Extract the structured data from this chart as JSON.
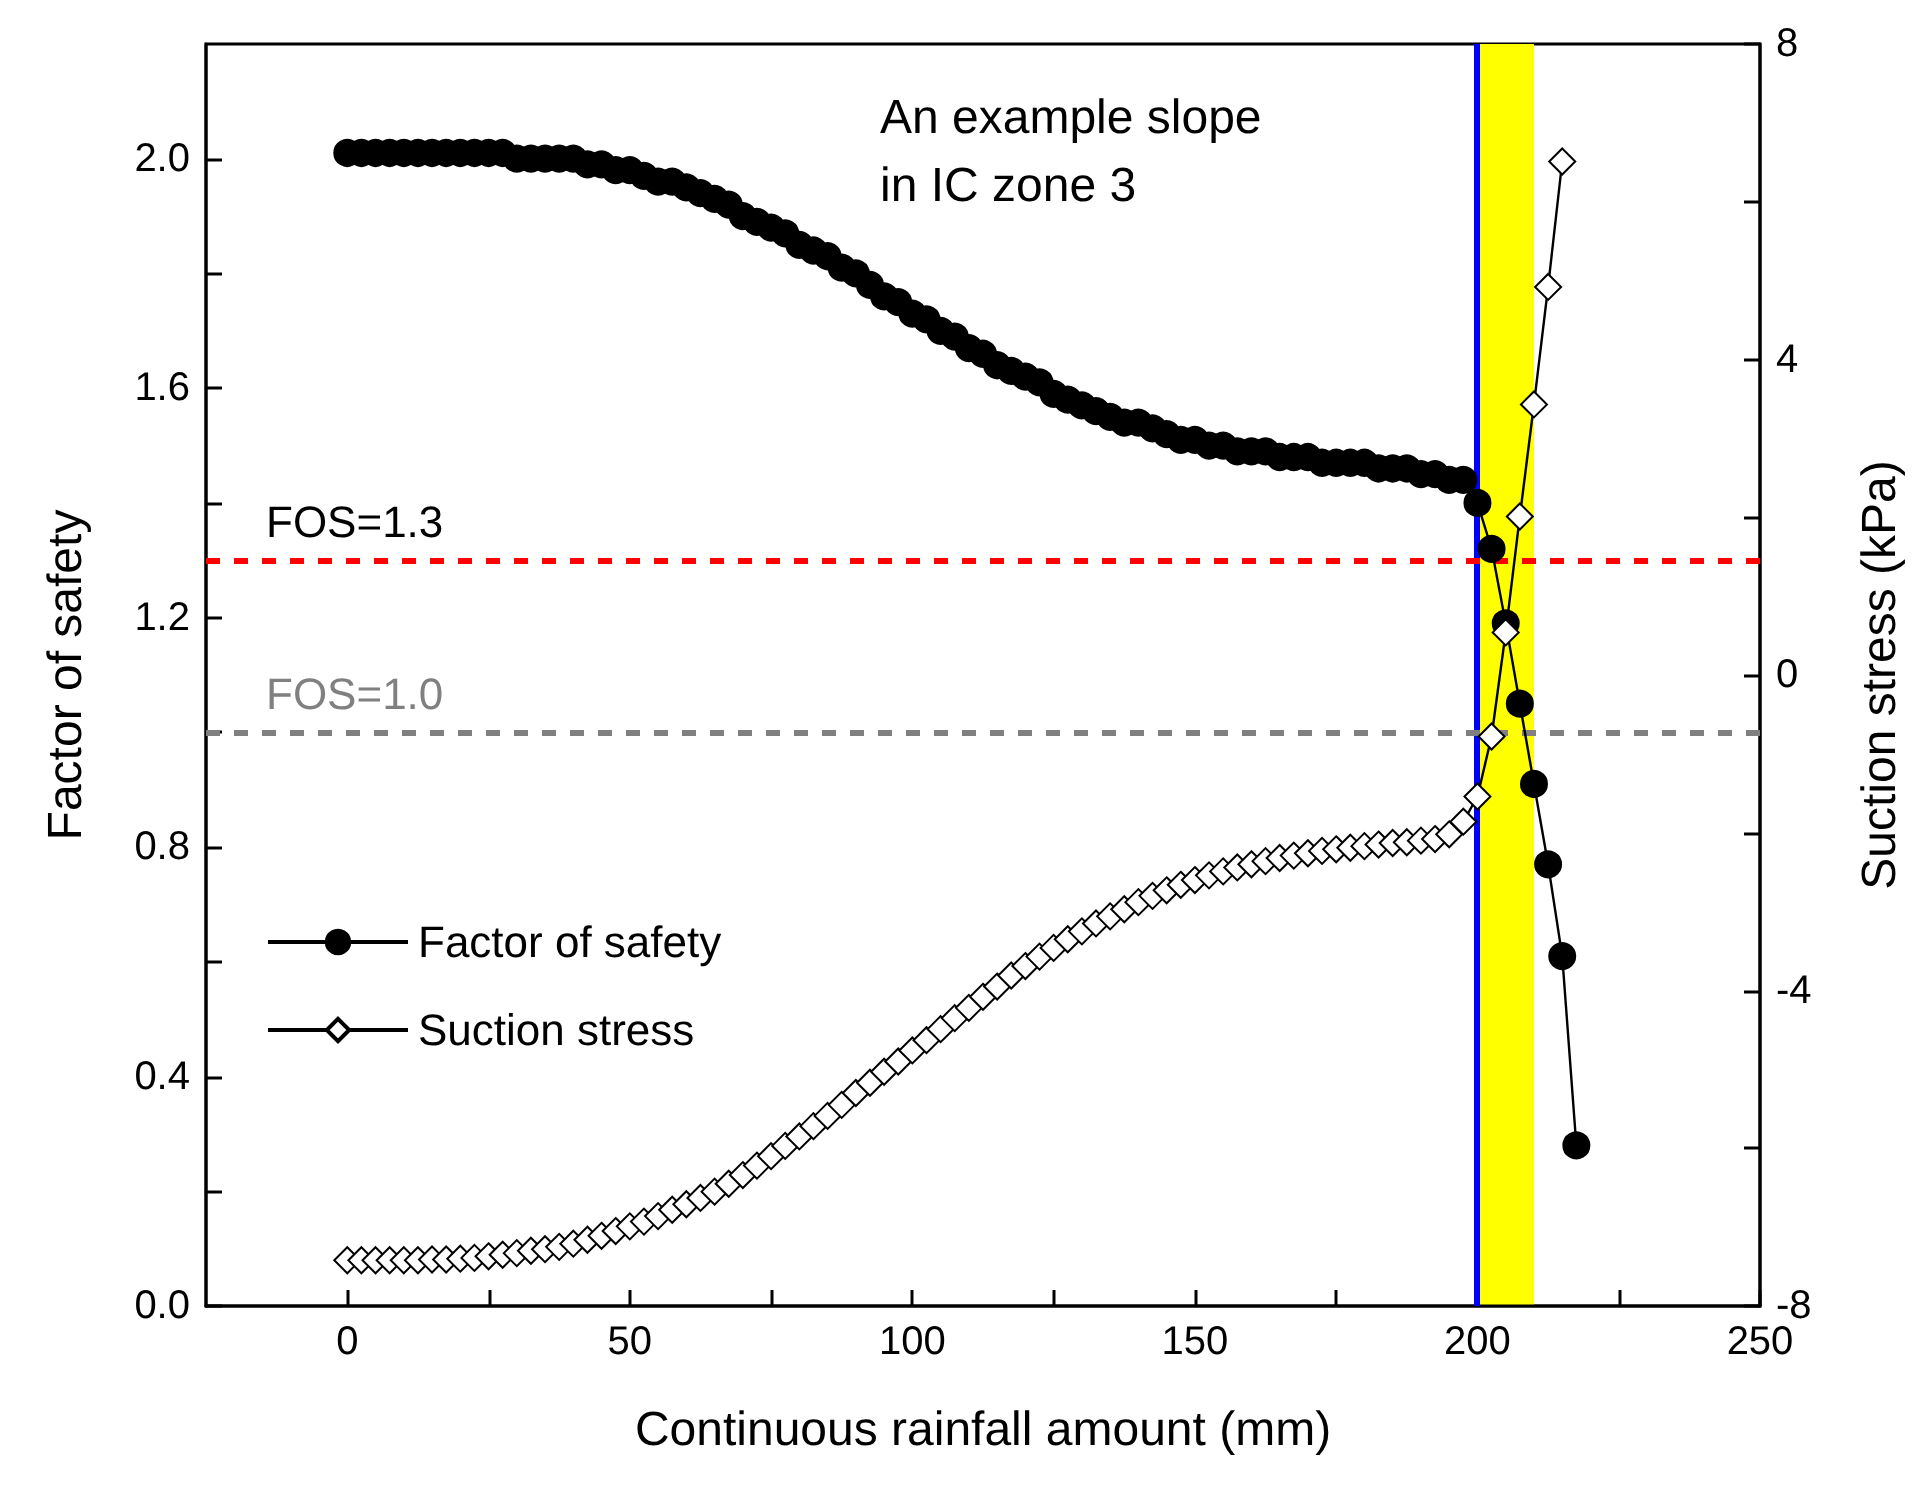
{
  "chart_data": {
    "type": "line",
    "xlabel": "Continuous rainfall amount (mm)",
    "ylabel": "Factor of safety",
    "y2label": "Suction stress (kPa)",
    "annotations": [
      "An example slope\nin IC zone 3"
    ],
    "x": [
      0,
      2.5,
      5,
      7.5,
      10,
      12.5,
      15,
      17.5,
      20,
      22.5,
      25,
      27.5,
      30,
      32.5,
      35,
      37.5,
      40,
      42.5,
      45,
      47.5,
      50,
      52.5,
      55,
      57.5,
      60,
      62.5,
      65,
      67.5,
      70,
      72.5,
      75,
      77.5,
      80,
      82.5,
      85,
      87.5,
      90,
      92.5,
      95,
      97.5,
      100,
      102.5,
      105,
      107.5,
      110,
      112.5,
      115,
      117.5,
      120,
      122.5,
      125,
      127.5,
      130,
      132.5,
      135,
      137.5,
      140,
      142.5,
      145,
      147.5,
      150,
      152.5,
      155,
      157.5,
      160,
      162.5,
      165,
      167.5,
      170,
      172.5,
      175,
      177.5,
      180,
      182.5,
      185,
      187.5,
      190,
      192.5,
      195,
      197.5,
      200,
      202.5,
      205,
      207.5,
      210,
      212.5,
      215,
      217.5
    ],
    "series": [
      {
        "name": "Factor of safety",
        "color": "#000000",
        "marker": "circle",
        "values": [
          2.01,
          2.01,
          2.01,
          2.01,
          2.01,
          2.01,
          2.01,
          2.01,
          2.01,
          2.01,
          2.01,
          2.01,
          2.0,
          2.0,
          2.0,
          2.0,
          2.0,
          1.99,
          1.99,
          1.98,
          1.98,
          1.97,
          1.96,
          1.96,
          1.95,
          1.94,
          1.93,
          1.92,
          1.9,
          1.89,
          1.88,
          1.87,
          1.85,
          1.84,
          1.83,
          1.81,
          1.8,
          1.78,
          1.76,
          1.75,
          1.73,
          1.72,
          1.7,
          1.69,
          1.67,
          1.66,
          1.64,
          1.63,
          1.62,
          1.61,
          1.59,
          1.58,
          1.57,
          1.56,
          1.55,
          1.54,
          1.54,
          1.53,
          1.52,
          1.51,
          1.51,
          1.5,
          1.5,
          1.49,
          1.49,
          1.49,
          1.48,
          1.48,
          1.48,
          1.47,
          1.47,
          1.47,
          1.47,
          1.46,
          1.46,
          1.46,
          1.45,
          1.45,
          1.44,
          1.44,
          1.4,
          1.32,
          1.19,
          1.05,
          0.91,
          0.77,
          0.61,
          0.28
        ]
      },
      {
        "name": "Suction stress",
        "color": "#000000",
        "marker": "diamond",
        "axis": "y2",
        "values": [
          -7.42,
          -7.42,
          -7.42,
          -7.42,
          -7.42,
          -7.42,
          -7.41,
          -7.41,
          -7.4,
          -7.39,
          -7.37,
          -7.35,
          -7.33,
          -7.3,
          -7.28,
          -7.25,
          -7.21,
          -7.16,
          -7.11,
          -7.05,
          -6.99,
          -6.93,
          -6.86,
          -6.78,
          -6.71,
          -6.63,
          -6.55,
          -6.45,
          -6.34,
          -6.22,
          -6.1,
          -5.97,
          -5.85,
          -5.72,
          -5.59,
          -5.45,
          -5.3,
          -5.17,
          -5.03,
          -4.9,
          -4.76,
          -4.63,
          -4.49,
          -4.35,
          -4.22,
          -4.08,
          -3.95,
          -3.81,
          -3.69,
          -3.57,
          -3.46,
          -3.35,
          -3.25,
          -3.15,
          -3.06,
          -2.97,
          -2.88,
          -2.8,
          -2.73,
          -2.66,
          -2.6,
          -2.54,
          -2.49,
          -2.44,
          -2.4,
          -2.36,
          -2.32,
          -2.29,
          -2.26,
          -2.23,
          -2.21,
          -2.19,
          -2.17,
          -2.15,
          -2.13,
          -2.12,
          -2.1,
          -2.08,
          -2.02,
          -1.86,
          -1.54,
          -0.78,
          0.54,
          2.01,
          3.43,
          4.92,
          6.51,
          null
        ]
      }
    ],
    "xlim": [
      -25,
      250
    ],
    "xticks": [
      0,
      {
        "value": 25,
        "label": null
      },
      50,
      {
        "value": 75,
        "label": null
      },
      100,
      {
        "value": 125,
        "label": null
      },
      150,
      {
        "value": 175,
        "label": null
      },
      200,
      {
        "value": 225,
        "label": null
      },
      250
    ],
    "ylim": [
      0,
      2.2
    ],
    "yticks": [
      {
        "value": 0,
        "label": "0.0"
      },
      {
        "value": 0.2,
        "label": null
      },
      {
        "value": 0.4,
        "label": "0.4"
      },
      {
        "value": 0.6,
        "label": null
      },
      {
        "value": 0.8,
        "label": "0.8"
      },
      {
        "value": 1.0,
        "label": null
      },
      {
        "value": 1.2,
        "label": "1.2"
      },
      {
        "value": 1.4,
        "label": null
      },
      {
        "value": 1.6,
        "label": "1.6"
      },
      {
        "value": 1.8,
        "label": null
      },
      {
        "value": 2.0,
        "label": "2.0"
      }
    ],
    "y2lim": [
      -8,
      8
    ],
    "y2ticks": [
      -8,
      {
        "value": -6,
        "label": null
      },
      -4,
      {
        "value": -2,
        "label": null
      },
      0,
      {
        "value": 2,
        "label": null
      },
      4,
      {
        "value": 6,
        "label": null
      },
      8
    ],
    "ref_lines": [
      {
        "axis": "y",
        "value": 1.3,
        "label": "FOS=1.3",
        "color": "#ff0000",
        "line_style": "dashed"
      },
      {
        "axis": "y",
        "value": 1.0,
        "label": "FOS=1.0",
        "color": "#808080",
        "line_style": "dashed"
      },
      {
        "axis": "x",
        "value": 200,
        "color": "#0000ff",
        "line_style": "solid"
      }
    ],
    "bands": [
      {
        "axis": "x",
        "from": 200,
        "to": 210,
        "color": "#ffff00"
      }
    ],
    "grid": false,
    "legend": "bottom left",
    "line_style": "solid"
  }
}
